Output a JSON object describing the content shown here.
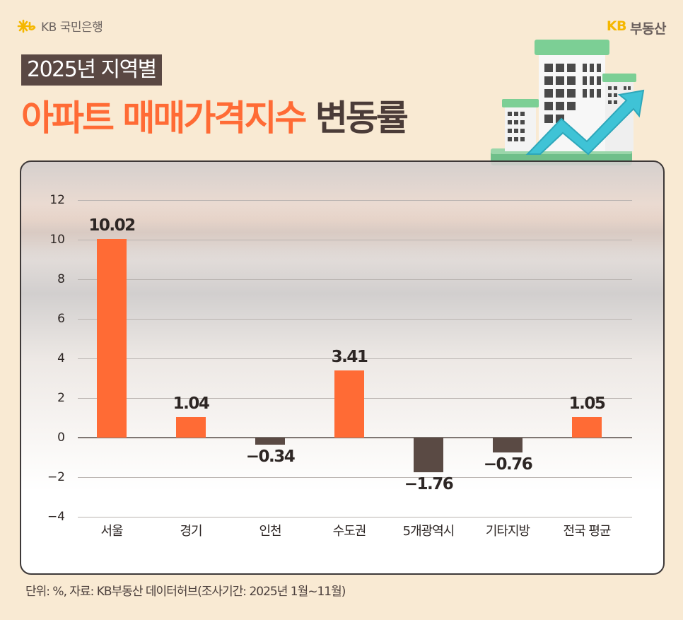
{
  "branding": {
    "bank_logo_text": "KB 국민은행",
    "bank_logo_icon": "kb-star-icon",
    "realty_kb": "KB",
    "realty_name": "부동산"
  },
  "header": {
    "subtitle": "2025년 지역별",
    "title_highlight": "아파트 매매가격지수",
    "title_rest": "변동률",
    "illustration": "building-rising-arrow-icon"
  },
  "colors": {
    "positive": "#ff6b35",
    "negative": "#5a4a44",
    "background": "#f9ead3",
    "subtitle_bg": "#5a4843",
    "realty_kb": "#f5b700"
  },
  "chart_data": {
    "type": "bar",
    "title": "2025년 지역별 아파트 매매가격지수 변동률",
    "categories": [
      "서울",
      "경기",
      "인천",
      "수도권",
      "5개광역시",
      "기타지방",
      "전국 평균"
    ],
    "values": [
      10.02,
      1.04,
      -0.34,
      3.41,
      -1.76,
      -0.76,
      1.05
    ],
    "value_labels": [
      "10.02",
      "1.04",
      "−0.34",
      "3.41",
      "−1.76",
      "−0.76",
      "1.05"
    ],
    "xlabel": "",
    "ylabel": "",
    "unit": "%",
    "ylim": [
      -4,
      12
    ],
    "yticks": [
      "12",
      "10",
      "8",
      "6",
      "4",
      "2",
      "0",
      "−2",
      "−4"
    ],
    "ytick_values": [
      12,
      10,
      8,
      6,
      4,
      2,
      0,
      -2,
      -4
    ],
    "grid": true,
    "legend": null
  },
  "footnote": "단위: %, 자료: KB부동산 데이터허브(조사기간: 2025년 1월~11월)"
}
